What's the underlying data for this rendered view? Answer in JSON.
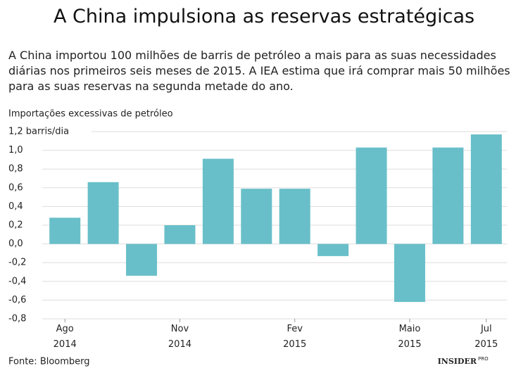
{
  "chart_data": {
    "type": "bar",
    "title": "A China impulsiona as reservas estratégicas",
    "subtitle": "A China importou 100 milhões de barris de petróleo a mais para as suas necessidades diárias nos primeiros seis meses de 2015. A IEA estima que irá comprar mais 50 milhões para as suas reservas na segunda metade do ano.",
    "y_axis_label": "Importações excessivas de petróleo",
    "categories": [
      "Ago 2014",
      null,
      null,
      "Nov 2014",
      null,
      null,
      "Fev 2015",
      null,
      null,
      "Maio 2015",
      null,
      "Jul 2015"
    ],
    "values": [
      0.28,
      0.66,
      -0.34,
      0.2,
      0.91,
      0.59,
      0.59,
      -0.13,
      1.03,
      -0.62,
      1.03,
      1.17
    ],
    "color": "#68bfc9",
    "ylim": [
      -0.8,
      1.2
    ],
    "yticks": [
      {
        "value": -0.8,
        "label": "-0,8"
      },
      {
        "value": -0.6,
        "label": "-0,6"
      },
      {
        "value": -0.4,
        "label": "-0,4"
      },
      {
        "value": -0.2,
        "label": "-0,2"
      },
      {
        "value": 0,
        "label": "0,0"
      },
      {
        "value": 0.2,
        "label": "0,2"
      },
      {
        "value": 0.4,
        "label": "0,4"
      },
      {
        "value": 0.6,
        "label": "0,6"
      },
      {
        "value": 0.8,
        "label": "0,8"
      },
      {
        "value": 1.0,
        "label": "1,0"
      },
      {
        "value": 1.2,
        "label": "1,2 barris/dia"
      }
    ],
    "grid": true,
    "source": "Fonte: Bloomberg",
    "logo": "INSIDER",
    "logo_sup": "PRO"
  }
}
